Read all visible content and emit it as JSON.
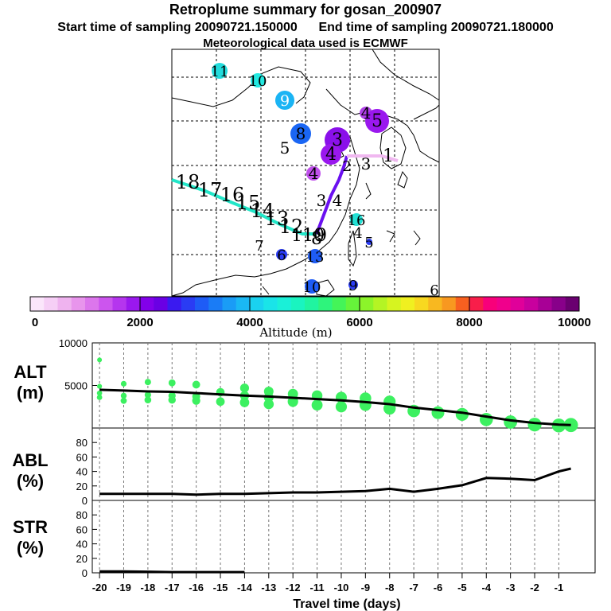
{
  "title": "Retroplume summary for gosan_200907",
  "start_label": "Start time of sampling 20090721.150000",
  "end_label": "End time of sampling 20090721.180000",
  "met_label": "Meteorological data used is ECMWF",
  "colorbar": {
    "label": "Altitude (m)",
    "ticks": [
      "0",
      "2000",
      "4000",
      "6000",
      "8000",
      "10000"
    ],
    "colors": [
      "#fbe6fb",
      "#f6cff6",
      "#efb3ef",
      "#e895ec",
      "#dc76ec",
      "#cc55ee",
      "#b535ee",
      "#9a18ee",
      "#8200ea",
      "#6a00e4",
      "#3a1af0",
      "#2a3cf4",
      "#1e5cf6",
      "#1a7cf6",
      "#1a9cf6",
      "#1ab8f4",
      "#1ad2f0",
      "#1ae4e8",
      "#1af0d8",
      "#1af4c0",
      "#20f4a0",
      "#2ef47c",
      "#44f458",
      "#66f43a",
      "#8cf42a",
      "#b4f424",
      "#d6f420",
      "#f0f020",
      "#f8d820",
      "#f8b820",
      "#f89820",
      "#f86020",
      "#f81e4a",
      "#f8007a",
      "#f0008c",
      "#e0009a",
      "#c8009e",
      "#a80096",
      "#88008a",
      "#6a0070"
    ]
  },
  "map": {
    "labels": [
      {
        "t": "11",
        "fill": "#22dcdc",
        "c": "#000"
      },
      {
        "t": "10",
        "fill": "#22e8e0",
        "c": "#000"
      },
      {
        "t": "9",
        "fill": "#1ab4f4",
        "c": "#fff"
      },
      {
        "t": "8",
        "fill": "#1a66f4",
        "c": "#000"
      },
      {
        "t": "5",
        "fill": "#9020e8",
        "c": "#000"
      },
      {
        "t": "4",
        "fill": "#b040e8",
        "c": "#000"
      },
      {
        "t": "5",
        "fill": "#9a18ee",
        "c": "#000"
      },
      {
        "t": "3",
        "fill": "#8a10ea",
        "c": "#000"
      },
      {
        "t": "4",
        "fill": "#9a18ee",
        "c": "#000"
      },
      {
        "t": "2",
        "fill": "#7a00e8",
        "c": "#000"
      },
      {
        "t": "3",
        "fill": "#f0c0f0",
        "c": "#000"
      },
      {
        "t": "1",
        "fill": "#f0c8f0",
        "c": "#000"
      },
      {
        "t": "4",
        "fill": "#c050ec",
        "c": "#000"
      },
      {
        "t": "3",
        "fill": "#7a00e8",
        "c": "#000"
      },
      {
        "t": "4",
        "fill": "#7a00e8",
        "c": "#000"
      },
      {
        "t": "16",
        "fill": "#22e0d4",
        "c": "#000"
      },
      {
        "t": "4",
        "fill": "#2a3cf4",
        "c": "#000"
      },
      {
        "t": "5",
        "fill": "#2a3cf4",
        "c": "#000"
      },
      {
        "t": "7",
        "fill": "#2a3cf4",
        "c": "#000"
      },
      {
        "t": "6",
        "fill": "#2a3cf4",
        "c": "#000"
      },
      {
        "t": "13",
        "fill": "#1e5cf6",
        "c": "#000"
      },
      {
        "t": "10",
        "fill": "#1e5cf6",
        "c": "#000"
      },
      {
        "t": "9",
        "fill": "#2a3cf4",
        "c": "#000"
      },
      {
        "t": "6",
        "fill": "#2a3cf4",
        "c": "#000"
      },
      {
        "t": "18",
        "fill": "#1ee0c8",
        "c": "#000"
      },
      {
        "t": "17",
        "fill": "#1ee0c8",
        "c": "#000"
      },
      {
        "t": "16",
        "fill": "#1ee0c8",
        "c": "#000"
      },
      {
        "t": "15",
        "fill": "#1ee0c8",
        "c": "#000"
      },
      {
        "t": "14",
        "fill": "#1ee0c8",
        "c": "#000"
      },
      {
        "t": "13",
        "fill": "#1ee0c8",
        "c": "#000"
      },
      {
        "t": "12",
        "fill": "#1ee0c8",
        "c": "#000"
      },
      {
        "t": "11",
        "fill": "#1ee0c8",
        "c": "#000"
      },
      {
        "t": "10",
        "fill": "#1ee0c8",
        "c": "#000"
      },
      {
        "t": "9",
        "fill": "#1ee0c8",
        "c": "#000"
      },
      {
        "t": "8",
        "fill": "#1ee0c8",
        "c": "#000"
      }
    ]
  },
  "panels": {
    "alt": {
      "label": "ALT",
      "unit": "(m)"
    },
    "abl": {
      "label": "ABL",
      "unit": "(%)"
    },
    "str": {
      "label": "STR",
      "unit": "(%)"
    }
  },
  "x_axis_label": "Travel time (days)",
  "chart_data": [
    {
      "type": "line",
      "title": "ALT",
      "xlabel": "Travel time (days)",
      "ylabel": "(m)",
      "xlim": [
        -20,
        0
      ],
      "ylim": [
        0,
        10000
      ],
      "yticks": [
        5000,
        10000
      ],
      "x": [
        -20,
        -19,
        -18,
        -17,
        -16,
        -15,
        -14,
        -13,
        -12,
        -11,
        -10,
        -9,
        -8,
        -7,
        -6,
        -5,
        -4,
        -3,
        -2,
        -1,
        -0.5
      ],
      "series": [
        {
          "name": "mean altitude",
          "values": [
            4500,
            4400,
            4300,
            4250,
            4100,
            3950,
            3800,
            3700,
            3550,
            3400,
            3250,
            3050,
            2800,
            2400,
            2100,
            1800,
            1350,
            900,
            600,
            400,
            350
          ]
        }
      ],
      "scatter": {
        "name": "particle cluster altitudes",
        "color": "#3cf060",
        "x": [
          -20,
          -20,
          -20,
          -20,
          -19,
          -19,
          -19,
          -18,
          -18,
          -18,
          -17,
          -17,
          -17,
          -16,
          -16,
          -16,
          -15,
          -15,
          -14,
          -14,
          -14,
          -13,
          -13,
          -13,
          -12,
          -12,
          -11,
          -11,
          -10,
          -10,
          -9,
          -9,
          -8,
          -8,
          -7,
          -6,
          -5,
          -4,
          -3,
          -2,
          -1,
          -0.5
        ],
        "y": [
          8000,
          4900,
          4100,
          3600,
          5200,
          3800,
          3200,
          5400,
          3900,
          3300,
          5300,
          3800,
          3300,
          5100,
          3700,
          3200,
          4200,
          3100,
          4700,
          3800,
          3000,
          4300,
          3600,
          2800,
          4000,
          3100,
          3800,
          2700,
          3600,
          2500,
          3500,
          2700,
          3100,
          2300,
          2000,
          1800,
          1600,
          1000,
          700,
          400,
          300,
          350
        ]
      }
    },
    {
      "type": "line",
      "title": "ABL",
      "xlabel": "Travel time (days)",
      "ylabel": "(%)",
      "xlim": [
        -20,
        0
      ],
      "ylim": [
        0,
        100
      ],
      "yticks": [
        0,
        20,
        40,
        60,
        80
      ],
      "x": [
        -20,
        -19,
        -18,
        -17,
        -16,
        -15,
        -14,
        -13,
        -12,
        -11,
        -10,
        -9,
        -8,
        -7,
        -6,
        -5,
        -4,
        -3,
        -2,
        -1,
        -0.5
      ],
      "series": [
        {
          "name": "ABL fraction",
          "values": [
            9,
            9,
            9,
            9,
            8,
            9,
            9,
            10,
            11,
            11,
            12,
            13,
            16,
            12,
            16,
            21,
            31,
            30,
            28,
            40,
            44
          ]
        }
      ]
    },
    {
      "type": "line",
      "title": "STR",
      "xlabel": "Travel time (days)",
      "ylabel": "(%)",
      "xlim": [
        -20,
        0
      ],
      "ylim": [
        0,
        100
      ],
      "yticks": [
        0,
        20,
        40,
        60,
        80
      ],
      "x": [
        -20,
        -19,
        -18,
        -17,
        -16,
        -15,
        -14
      ],
      "series": [
        {
          "name": "stratospheric fraction",
          "values": [
            2,
            2,
            1.5,
            1,
            1,
            1,
            1
          ]
        }
      ]
    }
  ],
  "x_ticks": [
    "-20",
    "-19",
    "-18",
    "-17",
    "-16",
    "-15",
    "-14",
    "-13",
    "-12",
    "-11",
    "-10",
    "-9",
    "-8",
    "-7",
    "-6",
    "-5",
    "-4",
    "-3",
    "-2",
    "-1"
  ]
}
